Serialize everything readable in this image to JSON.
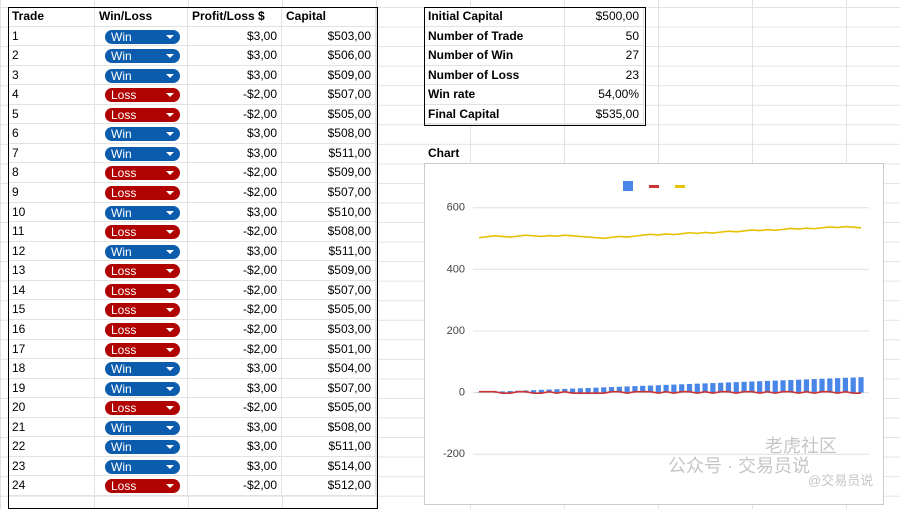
{
  "table": {
    "columns": [
      "Trade",
      "Win/Loss",
      "Profit/Loss $",
      "Capital"
    ],
    "rows": [
      [
        1,
        "Win",
        "$3,00",
        "$503,00"
      ],
      [
        2,
        "Win",
        "$3,00",
        "$506,00"
      ],
      [
        3,
        "Win",
        "$3,00",
        "$509,00"
      ],
      [
        4,
        "Loss",
        "-$2,00",
        "$507,00"
      ],
      [
        5,
        "Loss",
        "-$2,00",
        "$505,00"
      ],
      [
        6,
        "Win",
        "$3,00",
        "$508,00"
      ],
      [
        7,
        "Win",
        "$3,00",
        "$511,00"
      ],
      [
        8,
        "Loss",
        "-$2,00",
        "$509,00"
      ],
      [
        9,
        "Loss",
        "-$2,00",
        "$507,00"
      ],
      [
        10,
        "Win",
        "$3,00",
        "$510,00"
      ],
      [
        11,
        "Loss",
        "-$2,00",
        "$508,00"
      ],
      [
        12,
        "Win",
        "$3,00",
        "$511,00"
      ],
      [
        13,
        "Loss",
        "-$2,00",
        "$509,00"
      ],
      [
        14,
        "Loss",
        "-$2,00",
        "$507,00"
      ],
      [
        15,
        "Loss",
        "-$2,00",
        "$505,00"
      ],
      [
        16,
        "Loss",
        "-$2,00",
        "$503,00"
      ],
      [
        17,
        "Loss",
        "-$2,00",
        "$501,00"
      ],
      [
        18,
        "Win",
        "$3,00",
        "$504,00"
      ],
      [
        19,
        "Win",
        "$3,00",
        "$507,00"
      ],
      [
        20,
        "Loss",
        "-$2,00",
        "$505,00"
      ],
      [
        21,
        "Win",
        "$3,00",
        "$508,00"
      ],
      [
        22,
        "Win",
        "$3,00",
        "$511,00"
      ],
      [
        23,
        "Win",
        "$3,00",
        "$514,00"
      ],
      [
        24,
        "Loss",
        "-$2,00",
        "$512,00"
      ]
    ]
  },
  "summary": [
    [
      "Initial Capital",
      "$500,00"
    ],
    [
      "Number of Trade",
      "50"
    ],
    [
      "Number of Win",
      "27"
    ],
    [
      "Number of Loss",
      "23"
    ],
    [
      "Win rate",
      "54,00%"
    ],
    [
      "Final Capital",
      "$535,00"
    ]
  ],
  "chart": {
    "type": "bar-line",
    "title": "Chart",
    "ylim": [
      -300,
      700
    ],
    "yticks": [
      -200,
      0,
      200,
      400,
      600
    ],
    "grid": true,
    "series": [
      {
        "type": "bar",
        "color": "#4a86e8",
        "values": [
          1,
          2,
          3,
          4,
          5,
          6,
          7,
          8,
          9,
          10,
          11,
          12,
          13,
          14,
          15,
          16,
          17,
          18,
          19,
          20,
          21,
          22,
          23,
          24,
          25,
          26,
          27,
          28,
          29,
          30,
          31,
          32,
          33,
          34,
          35,
          36,
          37,
          38,
          39,
          40,
          41,
          42,
          43,
          44,
          45,
          46,
          47,
          48,
          49,
          50
        ]
      },
      {
        "type": "line",
        "color": "#cc3333",
        "values": [
          3,
          3,
          3,
          -2,
          -2,
          3,
          3,
          -2,
          -2,
          3,
          -2,
          3,
          -2,
          -2,
          -2,
          -2,
          -2,
          3,
          3,
          -2,
          3,
          3,
          3,
          -2,
          3,
          -2,
          3,
          3,
          -2,
          3,
          -2,
          3,
          3,
          -2,
          3,
          3,
          -2,
          3,
          -2,
          3,
          3,
          -2,
          3,
          -2,
          3,
          3,
          -2,
          3,
          -2,
          -2
        ]
      },
      {
        "type": "line",
        "color": "#e5c100",
        "values": [
          503,
          506,
          509,
          507,
          505,
          508,
          511,
          509,
          507,
          510,
          508,
          511,
          509,
          507,
          505,
          503,
          501,
          504,
          507,
          505,
          508,
          511,
          514,
          512,
          515,
          513,
          516,
          519,
          517,
          520,
          518,
          521,
          524,
          522,
          525,
          528,
          526,
          529,
          527,
          530,
          533,
          531,
          534,
          532,
          535,
          538,
          536,
          539,
          537,
          535
        ]
      }
    ]
  },
  "watermark": [
    "老虎社区",
    "公众号 · 交易员说",
    "@交易员说"
  ]
}
